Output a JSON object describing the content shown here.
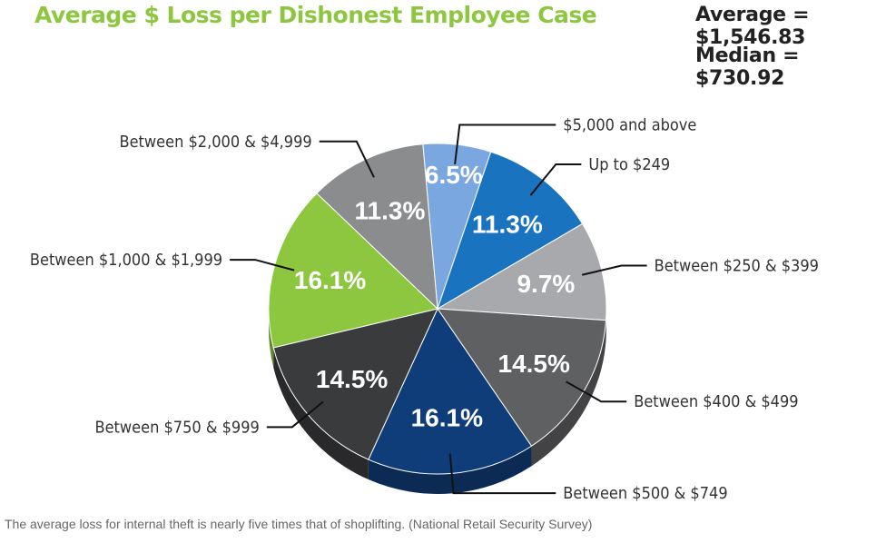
{
  "header": {
    "title": "Average $ Loss per Dishonest Employee Case",
    "average_label": "Average = ",
    "average_value": "$1,546.83",
    "median_label": "Median = ",
    "median_value": "$730.92"
  },
  "caption": "The average loss for internal theft is nearly five times that of shoplifting. (National Retail Security Survey)",
  "chart_data": {
    "type": "pie",
    "title": "Average $ Loss per Dishonest Employee Case",
    "slices": [
      {
        "category": "$5,000 and above",
        "value": 6.5,
        "label": "6.5%",
        "color": "#7aa7e0"
      },
      {
        "category": "Up to $249",
        "value": 11.3,
        "label": "11.3%",
        "color": "#1a73bf"
      },
      {
        "category": "Between $250 & $399",
        "value": 9.7,
        "label": "9.7%",
        "color": "#a7a9ac"
      },
      {
        "category": "Between $400 & $499",
        "value": 14.5,
        "label": "14.5%",
        "color": "#5f6062"
      },
      {
        "category": "Between $500 & $749",
        "value": 16.1,
        "label": "16.1%",
        "color": "#0f3d7a"
      },
      {
        "category": "Between $750 & $999",
        "value": 14.5,
        "label": "14.5%",
        "color": "#3a3b3d"
      },
      {
        "category": "Between $1,000 & $1,999",
        "value": 16.1,
        "label": "16.1%",
        "color": "#8dc63f"
      },
      {
        "category": "Between $2,000 & $4,999",
        "value": 11.3,
        "label": "11.3%",
        "color": "#8a8c8e"
      }
    ],
    "legend": "callout labels around pie"
  }
}
